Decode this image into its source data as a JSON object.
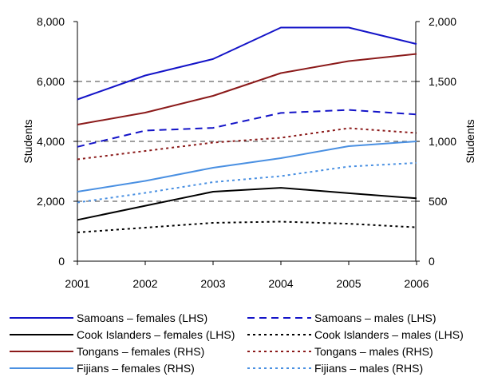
{
  "chart_data": {
    "type": "line",
    "x": [
      "2001",
      "2002",
      "2003",
      "2004",
      "2005",
      "2006"
    ],
    "axes": {
      "left": {
        "label": "Students",
        "ylim": [
          0,
          8000
        ],
        "ticks": [
          0,
          2000,
          4000,
          6000,
          8000
        ],
        "tick_labels": [
          "0",
          "2,000",
          "4,000",
          "6,000",
          "8,000"
        ]
      },
      "right": {
        "label": "Students",
        "ylim": [
          0,
          2000
        ],
        "ticks": [
          0,
          500,
          1000,
          1500,
          2000
        ],
        "tick_labels": [
          "0",
          "500",
          "1,000",
          "1,500",
          "2,000"
        ]
      }
    },
    "grid": "horizontal dashed",
    "legend_position": "bottom",
    "series": [
      {
        "name": "Samoans – females (LHS)",
        "axis": "left",
        "color": "#1414c8",
        "dash": "solid",
        "values": [
          5400,
          6200,
          6750,
          7800,
          7800,
          7250
        ]
      },
      {
        "name": "Samoans – males (LHS)",
        "axis": "left",
        "color": "#1414c8",
        "dash": "dashed",
        "values": [
          3820,
          4360,
          4450,
          4950,
          5050,
          4900
        ]
      },
      {
        "name": "Cook Islanders – females (LHS)",
        "axis": "left",
        "color": "#000000",
        "dash": "solid",
        "values": [
          1380,
          1850,
          2320,
          2450,
          2270,
          2100
        ]
      },
      {
        "name": "Cook Islanders – males (LHS)",
        "axis": "left",
        "color": "#000000",
        "dash": "dotted",
        "values": [
          960,
          1120,
          1280,
          1320,
          1250,
          1130
        ]
      },
      {
        "name": "Tongans – females (RHS)",
        "axis": "right",
        "color": "#8b1a1a",
        "dash": "solid",
        "values": [
          1140,
          1240,
          1380,
          1570,
          1670,
          1730
        ]
      },
      {
        "name": "Tongans – males (RHS)",
        "axis": "right",
        "color": "#8b1a1a",
        "dash": "dotted",
        "values": [
          850,
          920,
          990,
          1030,
          1110,
          1070
        ]
      },
      {
        "name": "Fijians – females (RHS)",
        "axis": "right",
        "color": "#4a90e2",
        "dash": "solid",
        "values": [
          580,
          670,
          780,
          860,
          960,
          1000
        ]
      },
      {
        "name": "Fijians – males (RHS)",
        "axis": "right",
        "color": "#4a90e2",
        "dash": "dotted",
        "values": [
          490,
          570,
          660,
          710,
          790,
          820
        ]
      }
    ]
  }
}
